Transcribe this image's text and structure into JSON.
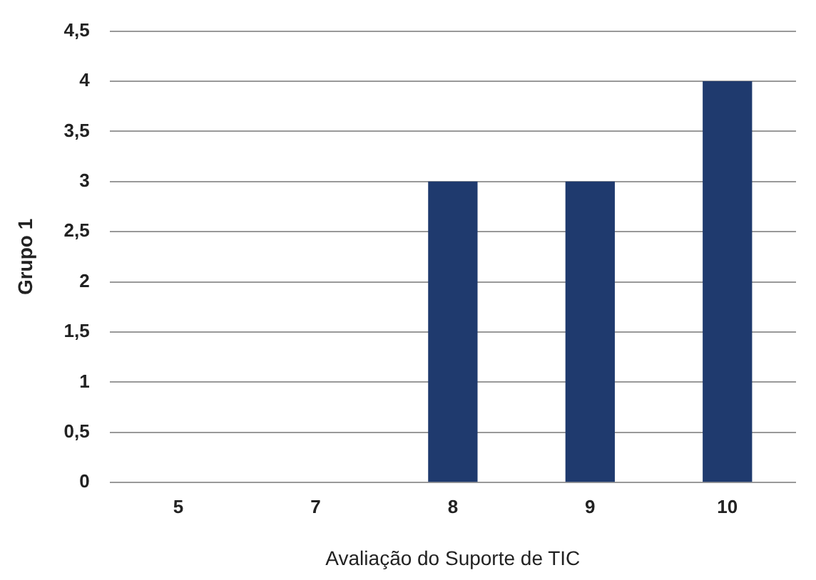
{
  "chart_data": {
    "type": "bar",
    "xlabel": "Avaliação do Suporte de TIC",
    "ylabel": "Grupo 1",
    "categories": [
      "5",
      "7",
      "8",
      "9",
      "10"
    ],
    "values": [
      0,
      0,
      3,
      3,
      4
    ],
    "color": "#1f3a6e",
    "ylim": [
      0,
      4.5
    ],
    "yticks": [
      0,
      {
        "value": 0.5,
        "label": "0,5"
      },
      1,
      {
        "value": 1.5,
        "label": "1,5"
      },
      2,
      {
        "value": 2.5,
        "label": "2,5"
      },
      3,
      {
        "value": 3.5,
        "label": "3,5"
      },
      4,
      {
        "value": 4.5,
        "label": "4,5"
      }
    ],
    "grid": "y",
    "legend": false
  }
}
